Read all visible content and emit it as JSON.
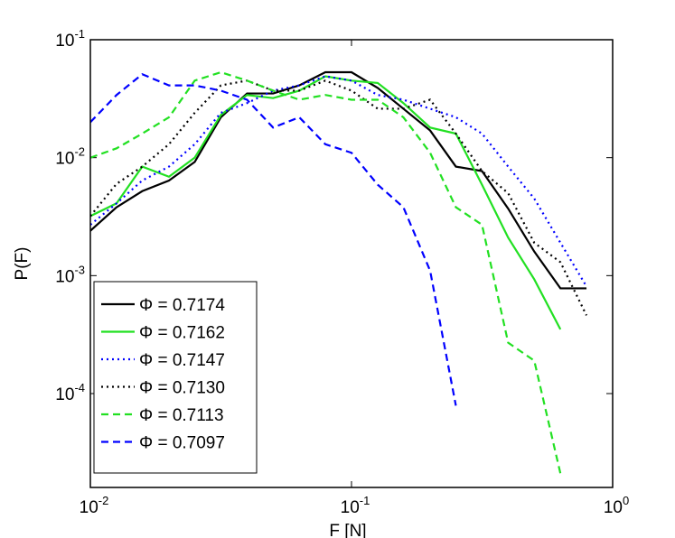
{
  "chart_data": {
    "type": "line",
    "xlabel": "F [N]",
    "ylabel": "P(F)",
    "xscale": "log",
    "yscale": "log",
    "xlim": [
      0.01,
      1
    ],
    "ylim": [
      1.6e-05,
      0.1
    ],
    "xticks": [
      {
        "value": 0.01,
        "label": "10",
        "exponent": "-2"
      },
      {
        "value": 0.1,
        "label": "10",
        "exponent": "-1"
      },
      {
        "value": 1,
        "label": "10",
        "exponent": "0"
      }
    ],
    "yticks": [
      {
        "value": 0.0001,
        "label": "10",
        "exponent": "-4"
      },
      {
        "value": 0.001,
        "label": "10",
        "exponent": "-3"
      },
      {
        "value": 0.01,
        "label": "10",
        "exponent": "-2"
      },
      {
        "value": 0.1,
        "label": "10",
        "exponent": "-1"
      }
    ],
    "legend": "lower left",
    "x": [
      0.01,
      0.0126,
      0.0158,
      0.02,
      0.0251,
      0.0316,
      0.0398,
      0.0501,
      0.0631,
      0.0794,
      0.1,
      0.126,
      0.158,
      0.2,
      0.251,
      0.316,
      0.398,
      0.501,
      0.631,
      0.794
    ],
    "series": [
      {
        "name": "Φ = 0.7174",
        "color": "#000000",
        "dash": "solid",
        "values": [
          0.0024,
          0.0038,
          0.0052,
          0.0064,
          0.0092,
          0.022,
          0.035,
          0.035,
          0.041,
          0.053,
          0.053,
          0.039,
          0.026,
          0.017,
          0.0084,
          0.0077,
          0.0037,
          0.0016,
          0.00078,
          0.00078
        ]
      },
      {
        "name": "Φ = 0.7162",
        "color": "#22e022",
        "dash": "solid",
        "values": [
          0.0032,
          0.0041,
          0.0084,
          0.0069,
          0.01,
          0.023,
          0.034,
          0.032,
          0.037,
          0.049,
          0.045,
          0.043,
          0.029,
          0.018,
          0.016,
          0.0059,
          0.0021,
          0.00093,
          0.00035,
          null
        ]
      },
      {
        "name": "Φ = 0.7147",
        "color": "#0000ff",
        "dash": "dotted",
        "values": [
          0.0027,
          0.0041,
          0.0064,
          0.0084,
          0.013,
          0.024,
          0.029,
          0.037,
          0.041,
          0.049,
          0.045,
          0.034,
          0.031,
          0.026,
          0.022,
          0.016,
          0.0084,
          0.0045,
          0.0019,
          0.00081
        ]
      },
      {
        "name": "Φ = 0.7130",
        "color": "#000000",
        "dash": "dotted",
        "values": [
          0.0032,
          0.006,
          0.0084,
          0.013,
          0.024,
          0.041,
          0.045,
          0.037,
          0.037,
          0.045,
          0.037,
          0.026,
          0.026,
          0.031,
          0.016,
          0.0077,
          0.005,
          0.0019,
          0.0013,
          0.00046
        ]
      },
      {
        "name": "Φ = 0.7113",
        "color": "#22e022",
        "dash": "dashed",
        "values": [
          0.01,
          0.012,
          0.016,
          0.022,
          0.045,
          0.053,
          0.045,
          0.037,
          0.031,
          0.034,
          0.031,
          0.031,
          0.022,
          0.011,
          0.0038,
          0.0027,
          0.00027,
          0.00019,
          2.1e-05,
          null
        ]
      },
      {
        "name": "Φ = 0.7097",
        "color": "#0000ff",
        "dash": "dashed",
        "values": [
          0.02,
          0.034,
          0.051,
          0.041,
          0.041,
          0.037,
          0.031,
          0.018,
          0.022,
          0.013,
          0.011,
          0.0059,
          0.0038,
          0.0011,
          7.9e-05,
          null,
          null,
          null,
          null,
          null
        ]
      }
    ]
  }
}
